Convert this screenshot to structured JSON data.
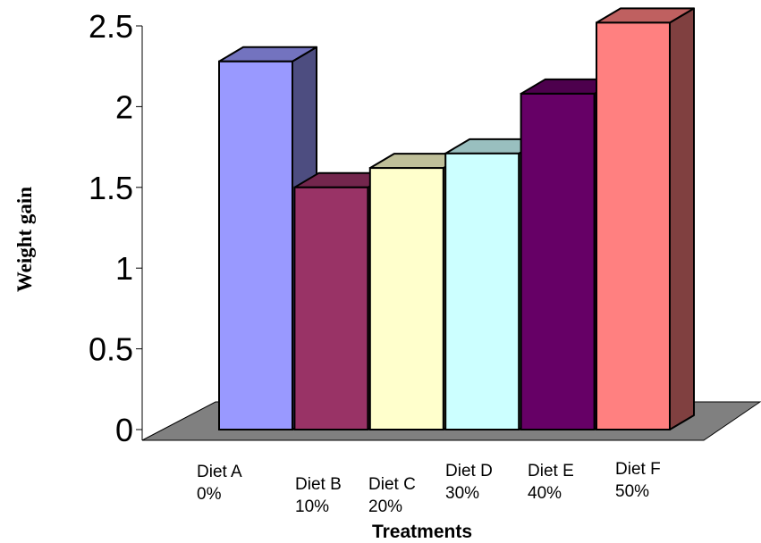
{
  "chart_data": {
    "type": "bar",
    "categories": [
      {
        "name": "Diet A",
        "sub": "0%"
      },
      {
        "name": "Diet B",
        "sub": "10%"
      },
      {
        "name": "Diet C",
        "sub": "20%"
      },
      {
        "name": "Diet D",
        "sub": "30%"
      },
      {
        "name": "Diet E",
        "sub": "40%"
      },
      {
        "name": "Diet F",
        "sub": "50%"
      }
    ],
    "values": [
      2.28,
      1.5,
      1.62,
      1.71,
      2.08,
      2.52
    ],
    "title": "",
    "xlabel": "Treatments",
    "ylabel": "Weight gain",
    "ylim": [
      0,
      2.5
    ],
    "yticks": [
      "0",
      "0.5",
      "1",
      "1.5",
      "2",
      "2.5"
    ],
    "grid": false,
    "colors": {
      "front": [
        "#9999ff",
        "#993366",
        "#ffffcc",
        "#ccffff",
        "#660066",
        "#ff8080"
      ],
      "side": [
        "#4d4d80",
        "#4d1a33",
        "#808066",
        "#668080",
        "#330033",
        "#804040"
      ],
      "top": [
        "#7373bf",
        "#73264d",
        "#bfbf99",
        "#99bfbf",
        "#4d004d",
        "#bf6060"
      ],
      "floor": "#808080"
    }
  }
}
